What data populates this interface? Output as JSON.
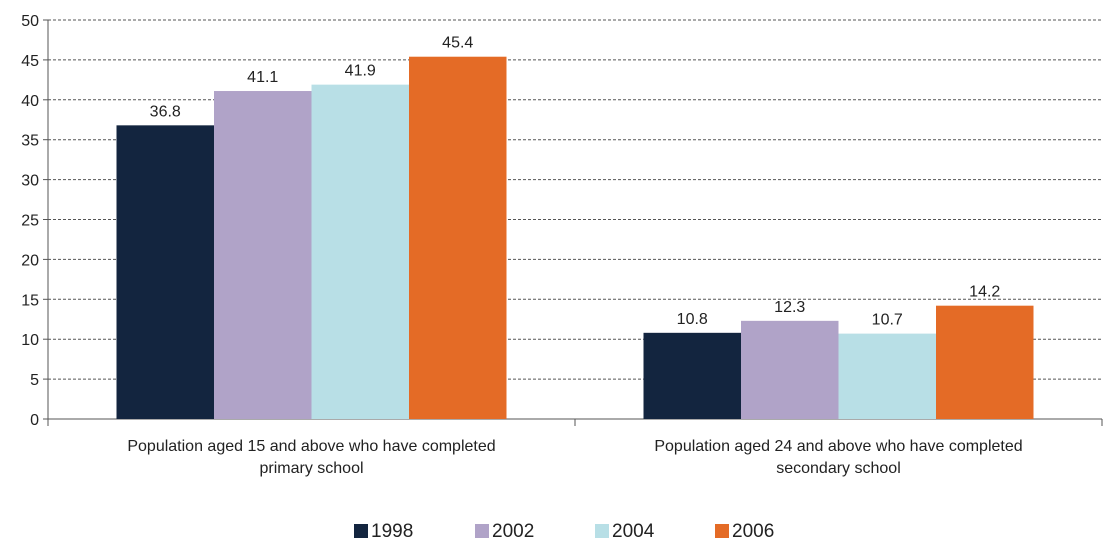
{
  "chart_data": {
    "type": "bar",
    "categories": [
      [
        "Population aged 15 and above who have completed",
        "primary school"
      ],
      [
        "Population aged 24 and above who have completed",
        "secondary school"
      ]
    ],
    "series": [
      {
        "name": "1998",
        "values": [
          36.8,
          10.8
        ],
        "labels": [
          "36.8",
          "10.8"
        ],
        "color": "#13253f"
      },
      {
        "name": "2002",
        "values": [
          41.1,
          12.3
        ],
        "labels": [
          "41.1",
          "12.3"
        ],
        "color": "#b0a3c8"
      },
      {
        "name": "2004",
        "values": [
          41.9,
          10.7
        ],
        "labels": [
          "41.9",
          "10.7"
        ],
        "color": "#b8dfe6"
      },
      {
        "name": "2006",
        "values": [
          45.4,
          14.2
        ],
        "labels": [
          "45.4",
          "14.2"
        ],
        "color": "#e46b26"
      }
    ],
    "ylim": [
      0,
      50
    ],
    "yticks": [
      "0",
      "5",
      "10",
      "15",
      "20",
      "25",
      "30",
      "35",
      "40",
      "45",
      "50"
    ],
    "grid": "horizontal-dashed",
    "legend_position": "bottom",
    "title": "",
    "xlabel": "",
    "ylabel": ""
  }
}
